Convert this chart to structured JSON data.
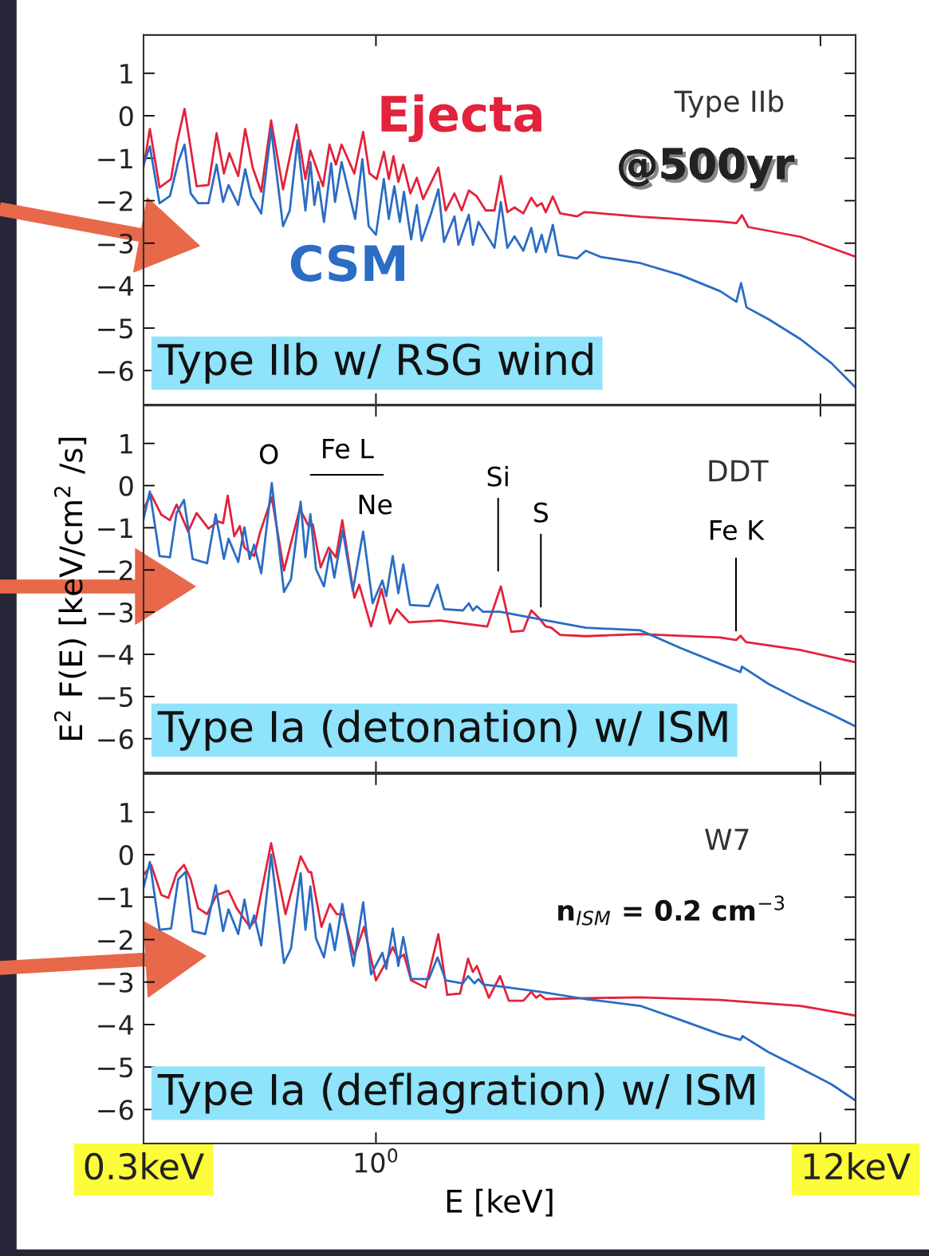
{
  "chart_data": [
    {
      "type": "line",
      "log": "x",
      "tick_labels": "y",
      "xlim": [
        0.3,
        12
      ],
      "ylim": [
        -6.8,
        1.9
      ],
      "yticks": [
        1,
        0,
        {
          "value": -1,
          "label": "−1"
        },
        {
          "value": -2,
          "label": "−2"
        },
        {
          "value": -3,
          "label": "−3"
        },
        {
          "value": -4,
          "label": "−4"
        },
        {
          "value": -5,
          "label": "−5"
        },
        {
          "value": -6,
          "label": "−6"
        }
      ],
      "series": [
        {
          "name": "Ejecta",
          "color": "#e2233b",
          "x": [
            0.3,
            0.303,
            0.31,
            0.326,
            0.346,
            0.356,
            0.371,
            0.395,
            0.42,
            0.438,
            0.455,
            0.468,
            0.49,
            0.508,
            0.528,
            0.552,
            0.581,
            0.618,
            0.663,
            0.694,
            0.712,
            0.76,
            0.786,
            0.813,
            0.837,
            0.894,
            0.936,
            0.967,
            1.004,
            1.042,
            1.069,
            1.095,
            1.123,
            1.152,
            1.195,
            1.236,
            1.277,
            1.382,
            1.435,
            1.502,
            1.559,
            1.618,
            1.687,
            1.766,
            1.848,
            1.91,
            1.975,
            2.05,
            2.146,
            2.236,
            2.302,
            2.36,
            2.41,
            2.5,
            2.597,
            2.834,
            2.942,
            3.066,
            3.933,
            5.95,
            6.47,
            6.66,
            6.88,
            9.02,
            12
          ],
          "values": [
            -1.2,
            -0.95,
            -0.31,
            -1.69,
            -1.49,
            -0.68,
            0.16,
            -1.66,
            -1.63,
            -0.41,
            -1.36,
            -0.88,
            -1.42,
            -0.31,
            -1.22,
            -1.79,
            -0.11,
            -1.73,
            -0.21,
            -1.49,
            -0.82,
            -1.66,
            -0.68,
            -1.15,
            -0.68,
            -1.36,
            -0.38,
            -1.36,
            -1.49,
            -0.85,
            -1.49,
            -0.95,
            -1.56,
            -1.15,
            -1.83,
            -1.46,
            -1.96,
            -1.22,
            -2.23,
            -1.83,
            -2.23,
            -1.76,
            -1.9,
            -2.23,
            -2.23,
            -1.42,
            -2.27,
            -2.16,
            -2.3,
            -1.93,
            -2.13,
            -2.06,
            -2.27,
            -1.9,
            -2.3,
            -2.37,
            -2.27,
            -2.28,
            -2.38,
            -2.49,
            -2.53,
            -2.34,
            -2.62,
            -2.85,
            -3.32
          ]
        },
        {
          "name": "CSM",
          "color": "#2b6cc4",
          "x": [
            0.3,
            0.31,
            0.326,
            0.344,
            0.359,
            0.371,
            0.383,
            0.398,
            0.42,
            0.438,
            0.453,
            0.466,
            0.49,
            0.508,
            0.524,
            0.552,
            0.581,
            0.618,
            0.64,
            0.666,
            0.694,
            0.712,
            0.727,
            0.742,
            0.764,
            0.793,
            0.809,
            0.837,
            0.898,
            0.932,
            0.963,
            1.0,
            1.042,
            1.069,
            1.1,
            1.132,
            1.156,
            1.2,
            1.236,
            1.267,
            1.331,
            1.382,
            1.423,
            1.502,
            1.533,
            1.618,
            1.652,
            1.701,
            1.848,
            1.91,
            1.975,
            2.05,
            2.146,
            2.236,
            2.293,
            2.36,
            2.41,
            2.5,
            2.575,
            2.834,
            2.965,
            3.196,
            3.933,
            4.84,
            5.95,
            6.47,
            6.63,
            6.82,
            7.64,
            9.02,
            10.6,
            12
          ],
          "values": [
            -1.15,
            -0.72,
            -2.06,
            -1.89,
            -1.09,
            -0.68,
            -1.83,
            -2.06,
            -2.06,
            -1.15,
            -2.03,
            -1.63,
            -2.1,
            -1.26,
            -1.89,
            -2.3,
            -0.31,
            -2.6,
            -2.23,
            -0.58,
            -2.23,
            -1.09,
            -2.1,
            -1.56,
            -2.5,
            -1.12,
            -2.03,
            -1.09,
            -2.43,
            -1.02,
            -2.6,
            -2.8,
            -1.49,
            -2.43,
            -1.66,
            -2.5,
            -1.79,
            -2.91,
            -2.1,
            -2.94,
            -2.3,
            -1.73,
            -2.97,
            -2.37,
            -3.04,
            -2.33,
            -3.04,
            -2.5,
            -3.11,
            -2.03,
            -3.11,
            -2.84,
            -3.18,
            -2.64,
            -3.21,
            -2.8,
            -3.21,
            -2.57,
            -3.28,
            -3.36,
            -3.18,
            -3.32,
            -3.47,
            -3.75,
            -4.13,
            -4.38,
            -3.94,
            -4.51,
            -4.79,
            -5.26,
            -5.83,
            -6.4
          ]
        }
      ],
      "annotations": [
        "Type IIb",
        "@500yr",
        "Type IIb w/ RSG wind"
      ]
    },
    {
      "type": "line",
      "log": "x",
      "tick_labels": "y",
      "xlim": [
        0.3,
        12
      ],
      "ylim": [
        -6.8,
        1.9
      ],
      "yticks": [
        1,
        0,
        {
          "value": -1,
          "label": "−1"
        },
        {
          "value": -2,
          "label": "−2"
        },
        {
          "value": -3,
          "label": "−3"
        },
        {
          "value": -4,
          "label": "−4"
        },
        {
          "value": -5,
          "label": "−5"
        },
        {
          "value": -6,
          "label": "−6"
        }
      ],
      "ylabel": "E$^{2}$ F(E) [keV/cm$^{2}$ /s]",
      "series": [
        {
          "color": "#e2233b",
          "x": [
            0.3,
            0.312,
            0.329,
            0.344,
            0.356,
            0.378,
            0.395,
            0.42,
            0.442,
            0.453,
            0.464,
            0.48,
            0.494,
            0.506,
            0.532,
            0.548,
            0.583,
            0.621,
            0.674,
            0.706,
            0.721,
            0.751,
            0.783,
            0.813,
            0.84,
            0.894,
            0.917,
            0.975,
            1.029,
            1.075,
            1.114,
            1.186,
            1.394,
            1.78,
            1.91,
            2.016,
            2.146,
            2.236,
            2.322,
            2.41,
            2.481,
            2.597,
            2.965,
            3.933,
            5.95,
            6.47,
            6.61,
            6.8,
            9.02,
            12
          ],
          "values": [
            -0.55,
            -0.21,
            -0.69,
            -0.82,
            -0.45,
            -1.09,
            -0.65,
            -1.02,
            -0.85,
            -0.89,
            -0.24,
            -1.2,
            -0.96,
            -1.47,
            -1.67,
            -1.13,
            -0.28,
            -2.01,
            -0.55,
            -0.96,
            -0.92,
            -1.94,
            -1.47,
            -1.7,
            -0.82,
            -2.66,
            -2.35,
            -3.34,
            -2.45,
            -3.27,
            -2.93,
            -3.24,
            -3.2,
            -3.34,
            -2.39,
            -3.47,
            -3.44,
            -2.96,
            -3.13,
            -3.34,
            -3.37,
            -3.54,
            -3.57,
            -3.52,
            -3.6,
            -3.66,
            -3.56,
            -3.71,
            -3.9,
            -4.19
          ]
        },
        {
          "color": "#2b6cc4",
          "x": [
            0.3,
            0.31,
            0.326,
            0.344,
            0.356,
            0.37,
            0.387,
            0.417,
            0.436,
            0.455,
            0.466,
            0.49,
            0.506,
            0.52,
            0.532,
            0.552,
            0.583,
            0.621,
            0.644,
            0.677,
            0.694,
            0.712,
            0.733,
            0.764,
            0.788,
            0.806,
            0.842,
            0.887,
            0.936,
            0.983,
            1.034,
            1.055,
            1.091,
            1.123,
            1.152,
            1.193,
            1.315,
            1.376,
            1.423,
            1.569,
            1.618,
            1.652,
            1.687,
            1.74,
            1.902,
            2.341,
            2.965,
            3.933,
            4.84,
            5.95,
            6.61,
            6.66,
            7.64,
            9.02,
            10.6,
            12
          ],
          "values": [
            -0.79,
            -0.14,
            -1.67,
            -1.7,
            -0.65,
            -0.34,
            -1.74,
            -1.84,
            -0.68,
            -1.74,
            -1.26,
            -1.81,
            -0.99,
            -1.74,
            -1.4,
            -2.08,
            0.06,
            -2.52,
            -2.22,
            -0.38,
            -1.7,
            -0.68,
            -1.98,
            -2.39,
            -1.57,
            -2.18,
            -1.06,
            -2.49,
            -1.09,
            -2.79,
            -2.25,
            -2.62,
            -1.67,
            -2.55,
            -1.87,
            -2.83,
            -2.86,
            -2.35,
            -2.93,
            -2.96,
            -2.79,
            -2.96,
            -2.86,
            -2.99,
            -2.99,
            -3.17,
            -3.37,
            -3.43,
            -3.85,
            -4.23,
            -4.42,
            -4.29,
            -4.7,
            -5.09,
            -5.43,
            -5.71
          ]
        }
      ],
      "annotations": [
        "O",
        "Fe L",
        "Ne",
        "Si",
        "S",
        "Fe K",
        "DDT",
        "Type Ia (detonation) w/ ISM"
      ]
    },
    {
      "type": "line",
      "log": "x",
      "xlim": [
        0.3,
        12
      ],
      "ylim": [
        -6.8,
        1.9
      ],
      "xticks": [
        {
          "value": 0.3,
          "label": "0.3keV"
        },
        {
          "value": 1,
          "label": "10$^{0}$"
        },
        {
          "value": 10,
          "label": null
        },
        {
          "value": 12,
          "label": "12keV"
        }
      ],
      "yticks": [
        1,
        0,
        {
          "value": -1,
          "label": "−1"
        },
        {
          "value": -2,
          "label": "−2"
        },
        {
          "value": -3,
          "label": "−3"
        },
        {
          "value": -4,
          "label": "−4"
        },
        {
          "value": -5,
          "label": "−5"
        },
        {
          "value": -6,
          "label": "−6"
        }
      ],
      "xlabel": "E [keV]",
      "series": [
        {
          "color": "#e2233b",
          "x": [
            0.3,
            0.312,
            0.329,
            0.341,
            0.356,
            0.37,
            0.383,
            0.398,
            0.417,
            0.438,
            0.466,
            0.486,
            0.52,
            0.537,
            0.581,
            0.626,
            0.677,
            0.706,
            0.715,
            0.754,
            0.788,
            0.816,
            0.844,
            0.894,
            0.94,
            1.0,
            1.051,
            1.091,
            1.123,
            1.156,
            1.2,
            1.293,
            1.382,
            1.447,
            1.546,
            1.612,
            1.652,
            1.687,
            1.795,
            1.902,
            1.991,
            2.146,
            2.236,
            2.293,
            2.341,
            2.41,
            2.965,
            3.933,
            5.95,
            9.02,
            12
          ],
          "values": [
            -0.48,
            -0.24,
            -0.95,
            -1.02,
            -0.44,
            -0.24,
            -0.58,
            -1.26,
            -1.4,
            -0.95,
            -0.85,
            -1.26,
            -1.7,
            -1.53,
            0.27,
            -1.4,
            -0.04,
            -0.41,
            -0.41,
            -1.7,
            -1.16,
            -1.4,
            -1.4,
            -2.38,
            -1.7,
            -2.96,
            -2.55,
            -2.18,
            -2.45,
            -2.35,
            -2.96,
            -3.13,
            -1.87,
            -3.3,
            -3.27,
            -2.45,
            -2.76,
            -2.62,
            -3.37,
            -2.86,
            -3.44,
            -3.44,
            -3.23,
            -3.37,
            -3.3,
            -3.4,
            -3.38,
            -3.36,
            -3.42,
            -3.56,
            -3.79
          ]
        },
        {
          "color": "#2b6cc4",
          "x": [
            0.3,
            0.31,
            0.326,
            0.346,
            0.359,
            0.373,
            0.387,
            0.413,
            0.436,
            0.453,
            0.466,
            0.49,
            0.506,
            0.52,
            0.532,
            0.552,
            0.581,
            0.621,
            0.644,
            0.677,
            0.694,
            0.712,
            0.733,
            0.764,
            0.788,
            0.808,
            0.84,
            0.89,
            0.936,
            0.975,
            1.034,
            1.055,
            1.091,
            1.123,
            1.152,
            1.2,
            1.315,
            1.376,
            1.435,
            1.569,
            1.612,
            1.666,
            1.701,
            1.744,
            1.902,
            2.341,
            2.965,
            3.933,
            4.84,
            5.95,
            6.61,
            6.68,
            7.64,
            9.02,
            10.6,
            12
          ],
          "values": [
            -0.78,
            -0.17,
            -1.77,
            -1.74,
            -0.58,
            -0.41,
            -1.8,
            -1.87,
            -0.72,
            -1.8,
            -1.29,
            -1.87,
            -1.06,
            -1.74,
            -1.43,
            -2.14,
            0.0,
            -2.55,
            -2.21,
            -0.44,
            -1.77,
            -0.75,
            -1.97,
            -2.42,
            -1.63,
            -2.25,
            -1.16,
            -2.62,
            -1.12,
            -2.82,
            -2.31,
            -2.69,
            -1.74,
            -2.62,
            -1.94,
            -2.93,
            -2.93,
            -2.42,
            -2.96,
            -3.03,
            -2.86,
            -3.03,
            -2.93,
            -3.06,
            -3.1,
            -3.23,
            -3.4,
            -3.56,
            -3.89,
            -4.23,
            -4.36,
            -4.27,
            -4.65,
            -5.03,
            -5.41,
            -5.79
          ]
        }
      ],
      "annotations": [
        "W7",
        "n$_{ISM}$ = 0.2 cm$^{−3}$",
        "Type Ia (deflagration) w/ ISM"
      ]
    }
  ]
}
